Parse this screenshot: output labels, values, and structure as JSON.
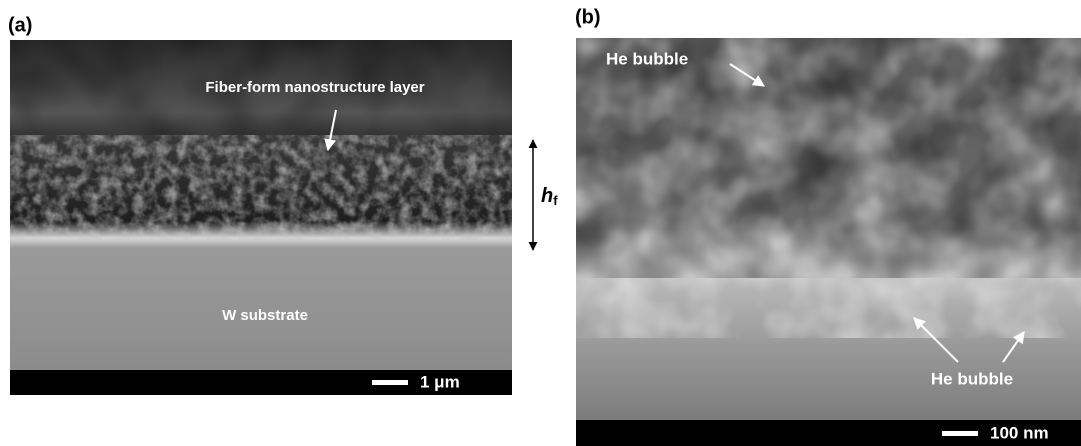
{
  "panels": [
    {
      "label": "(a)",
      "layer_label": "Fiber-form nanostructure layer",
      "substrate_label": "W substrate",
      "height_label": {
        "main": "h",
        "subscript": "f"
      },
      "scale_bar": "1 μm"
    },
    {
      "label": "(b)",
      "bubble_labels": [
        "He bubble",
        "He bubble"
      ],
      "scale_bar": "100 nm"
    }
  ]
}
